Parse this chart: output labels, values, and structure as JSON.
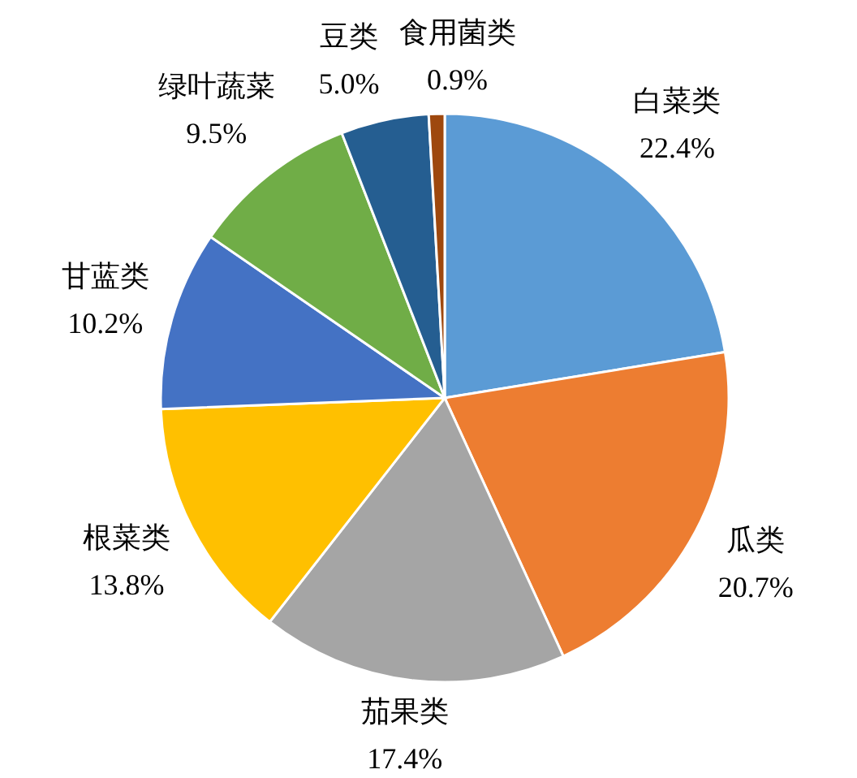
{
  "chart_data": {
    "type": "pie",
    "categories": [
      "白菜类",
      "瓜类",
      "茄果类",
      "根菜类",
      "甘蓝类",
      "绿叶蔬菜",
      "豆类",
      "食用菌类"
    ],
    "values": [
      22.4,
      20.7,
      17.4,
      13.8,
      10.2,
      9.5,
      5.0,
      0.9
    ],
    "value_labels": [
      "22.4%",
      "20.7%",
      "17.4%",
      "13.8%",
      "10.2%",
      "9.5%",
      "5.0%",
      "0.9%"
    ],
    "colors": [
      "#5b9bd5",
      "#ed7d31",
      "#a5a5a5",
      "#ffc000",
      "#4472c4",
      "#70ad47",
      "#255e91",
      "#9e480e"
    ],
    "legend": false
  }
}
